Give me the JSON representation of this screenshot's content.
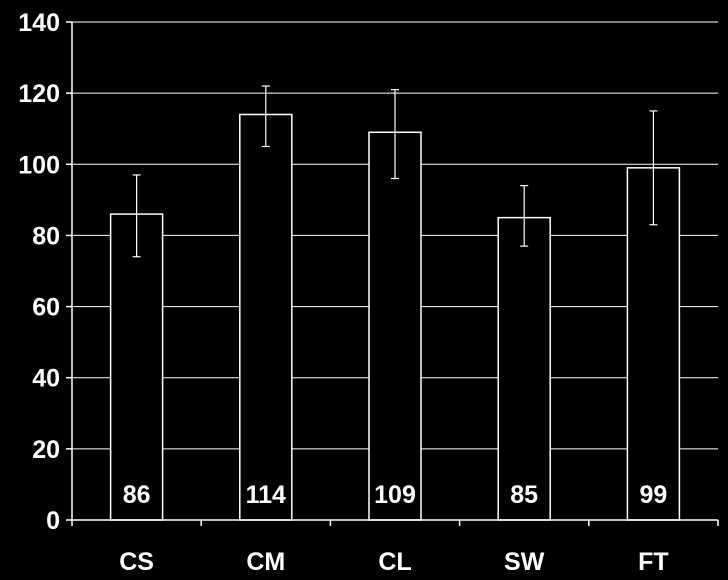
{
  "colors": {
    "background": "#000000",
    "foreground": "#ffffff",
    "bar_fill": "#000000",
    "bar_stroke": "#ffffff"
  },
  "chart_data": {
    "type": "bar",
    "title": "",
    "xlabel": "",
    "ylabel": "",
    "categories": [
      "CS",
      "CM",
      "CL",
      "SW",
      "FT"
    ],
    "values": [
      86,
      114,
      109,
      85,
      99
    ],
    "data_labels": [
      "86",
      "114",
      "109",
      "85",
      "99"
    ],
    "error_bars": [
      {
        "low": 74,
        "high": 97
      },
      {
        "low": 105,
        "high": 122
      },
      {
        "low": 96,
        "high": 121
      },
      {
        "low": 77,
        "high": 94
      },
      {
        "low": 83,
        "high": 115
      }
    ],
    "ylim": [
      0,
      140
    ],
    "yticks": [
      0,
      20,
      40,
      60,
      80,
      100,
      120,
      140
    ],
    "ytick_labels": [
      "0",
      "20",
      "40",
      "60",
      "80",
      "100",
      "120",
      "140"
    ],
    "grid": true,
    "legend": "none"
  }
}
